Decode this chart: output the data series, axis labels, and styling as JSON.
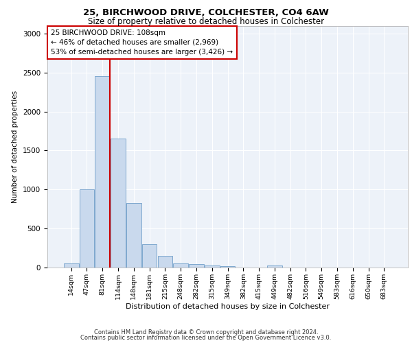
{
  "title1": "25, BIRCHWOOD DRIVE, COLCHESTER, CO4 6AW",
  "title2": "Size of property relative to detached houses in Colchester",
  "xlabel": "Distribution of detached houses by size in Colchester",
  "ylabel": "Number of detached properties",
  "footer1": "Contains HM Land Registry data © Crown copyright and database right 2024.",
  "footer2": "Contains public sector information licensed under the Open Government Licence v3.0.",
  "annotation_line1": "25 BIRCHWOOD DRIVE: 108sqm",
  "annotation_line2": "← 46% of detached houses are smaller (2,969)",
  "annotation_line3": "53% of semi-detached houses are larger (3,426) →",
  "bar_labels": [
    "14sqm",
    "47sqm",
    "81sqm",
    "114sqm",
    "148sqm",
    "181sqm",
    "215sqm",
    "248sqm",
    "282sqm",
    "315sqm",
    "349sqm",
    "382sqm",
    "415sqm",
    "449sqm",
    "482sqm",
    "516sqm",
    "549sqm",
    "583sqm",
    "616sqm",
    "650sqm",
    "683sqm"
  ],
  "bar_values": [
    50,
    1000,
    2450,
    1650,
    830,
    300,
    150,
    55,
    40,
    30,
    20,
    0,
    0,
    30,
    0,
    0,
    0,
    0,
    0,
    0,
    0
  ],
  "bar_color": "#c9d9ed",
  "bar_edge_color": "#5a8fc0",
  "vline_color": "#cc0000",
  "annotation_box_color": "#ffffff",
  "annotation_box_edge": "#cc0000",
  "ylim": [
    0,
    3100
  ],
  "yticks": [
    0,
    500,
    1000,
    1500,
    2000,
    2500,
    3000
  ],
  "background_color": "#edf2f9",
  "grid_color": "#ffffff"
}
